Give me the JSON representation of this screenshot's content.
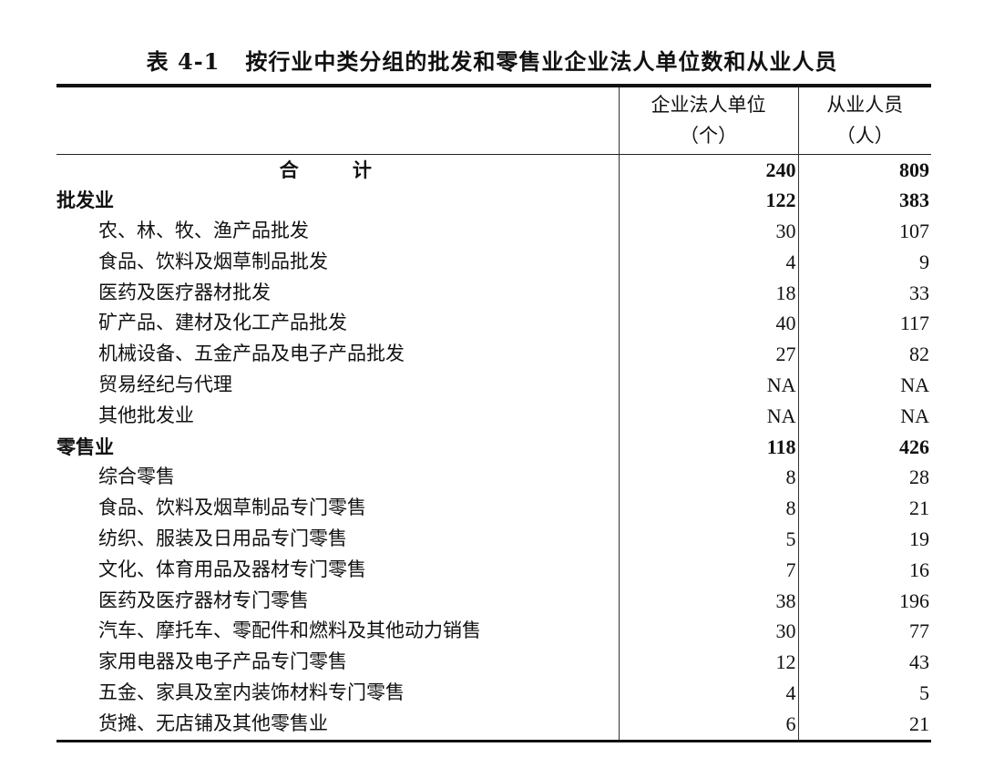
{
  "title": {
    "number": "表 4-1",
    "text": "按行业中类分组的批发和零售业企业法人单位数和从业人员"
  },
  "header": {
    "col1_line1": "企业法人单位",
    "col1_line2": "（个）",
    "col2_line1": "从业人员",
    "col2_line2": "（人）"
  },
  "rows": [
    {
      "label": "合  计",
      "units": "240",
      "employees": "809",
      "level": "total"
    },
    {
      "label": "批发业",
      "units": "122",
      "employees": "383",
      "level": "section"
    },
    {
      "label": "农、林、牧、渔产品批发",
      "units": "30",
      "employees": "107",
      "level": "item"
    },
    {
      "label": "食品、饮料及烟草制品批发",
      "units": "4",
      "employees": "9",
      "level": "item"
    },
    {
      "label": "医药及医疗器材批发",
      "units": "18",
      "employees": "33",
      "level": "item"
    },
    {
      "label": "矿产品、建材及化工产品批发",
      "units": "40",
      "employees": "117",
      "level": "item"
    },
    {
      "label": "机械设备、五金产品及电子产品批发",
      "units": "27",
      "employees": "82",
      "level": "item"
    },
    {
      "label": "贸易经纪与代理",
      "units": "NA",
      "employees": "NA",
      "level": "item"
    },
    {
      "label": "其他批发业",
      "units": "NA",
      "employees": "NA",
      "level": "item"
    },
    {
      "label": "零售业",
      "units": "118",
      "employees": "426",
      "level": "section"
    },
    {
      "label": "综合零售",
      "units": "8",
      "employees": "28",
      "level": "item"
    },
    {
      "label": "食品、饮料及烟草制品专门零售",
      "units": "8",
      "employees": "21",
      "level": "item"
    },
    {
      "label": "纺织、服装及日用品专门零售",
      "units": "5",
      "employees": "19",
      "level": "item"
    },
    {
      "label": "文化、体育用品及器材专门零售",
      "units": "7",
      "employees": "16",
      "level": "item"
    },
    {
      "label": "医药及医疗器材专门零售",
      "units": "38",
      "employees": "196",
      "level": "item"
    },
    {
      "label": "汽车、摩托车、零配件和燃料及其他动力销售",
      "units": "30",
      "employees": "77",
      "level": "item"
    },
    {
      "label": "家用电器及电子产品专门零售",
      "units": "12",
      "employees": "43",
      "level": "item"
    },
    {
      "label": "五金、家具及室内装饰材料专门零售",
      "units": "4",
      "employees": "5",
      "level": "item"
    },
    {
      "label": "货摊、无店铺及其他零售业",
      "units": "6",
      "employees": "21",
      "level": "item"
    }
  ]
}
